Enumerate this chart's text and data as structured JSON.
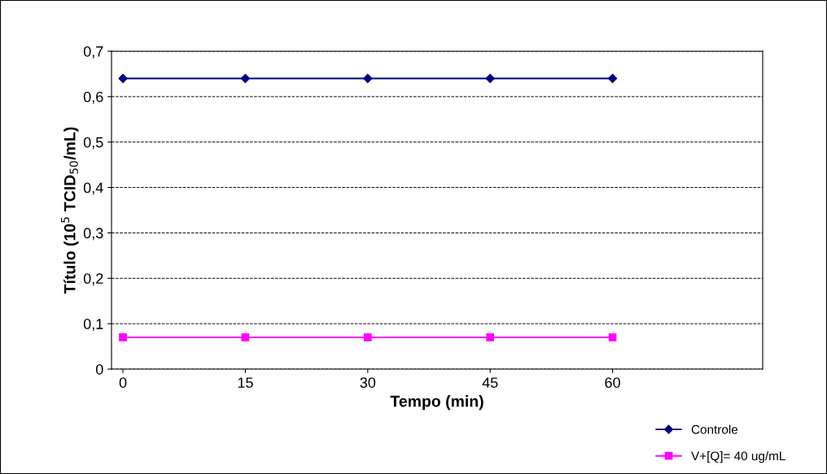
{
  "chart_data": {
    "type": "line",
    "xlabel": "Tempo (min)",
    "ylabel": "Título (10$^{5}$ TCID$_{50}$/mL)",
    "x": [
      0,
      15,
      30,
      45,
      60
    ],
    "series": [
      {
        "name": "Controle",
        "color": "#000080",
        "marker": "diamond",
        "values": [
          0.64,
          0.64,
          0.64,
          0.64,
          0.64
        ]
      },
      {
        "name": "V+[Q]= 40 ug/mL",
        "color": "#ff00ff",
        "marker": "square",
        "values": [
          0.07,
          0.07,
          0.07,
          0.07,
          0.07
        ]
      }
    ],
    "xlim": [
      -1.4,
      78.4
    ],
    "xticks": [
      0,
      15,
      30,
      45,
      60
    ],
    "ylim": [
      0,
      0.7
    ],
    "yticks": [
      {
        "value": 0,
        "label": "0"
      },
      {
        "value": 0.1,
        "label": "0,1"
      },
      {
        "value": 0.2,
        "label": "0,2"
      },
      {
        "value": 0.3,
        "label": "0,3"
      },
      {
        "value": 0.4,
        "label": "0,4"
      },
      {
        "value": 0.5,
        "label": "0,5"
      },
      {
        "value": 0.6,
        "label": "0,6"
      },
      {
        "value": 0.7,
        "label": "0,7"
      }
    ],
    "grid": "y",
    "line_style": "solid",
    "legend": "bottom right"
  }
}
